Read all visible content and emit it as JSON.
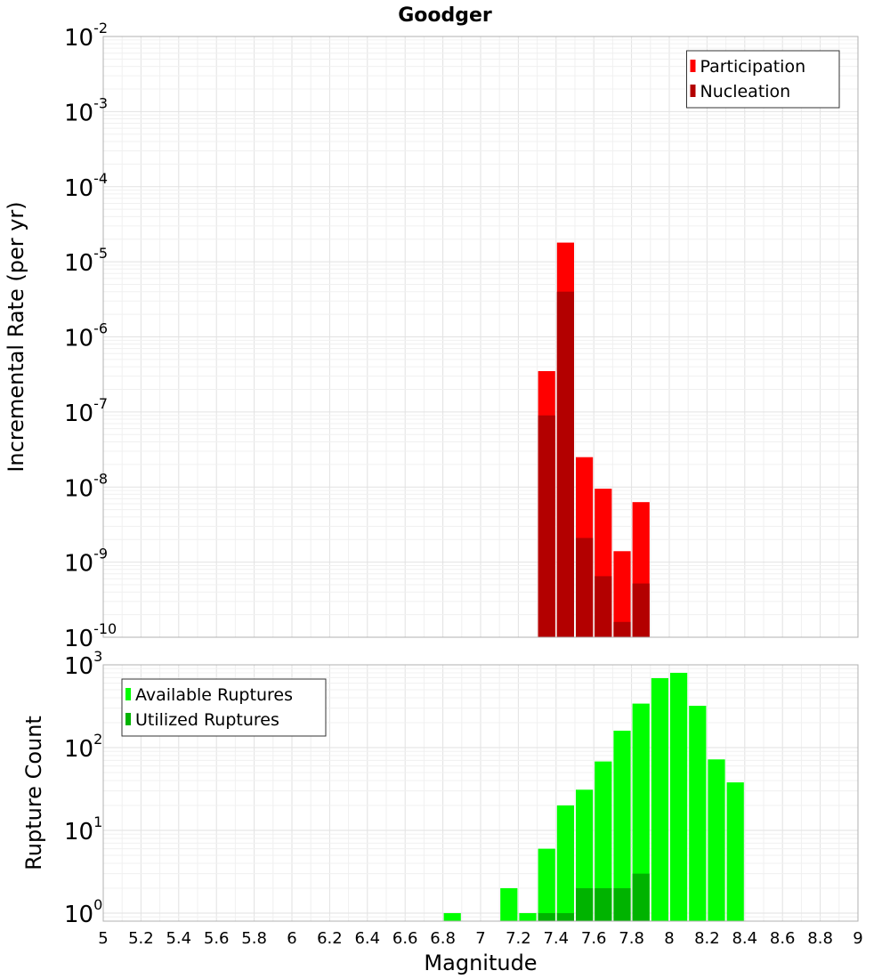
{
  "chart_data": {
    "title": "Goodger",
    "xlabel": "Magnitude",
    "xlim": [
      5,
      9
    ],
    "xticks": [
      "5",
      "5.2",
      "5.4",
      "5.6",
      "5.8",
      "6",
      "6.2",
      "6.4",
      "6.6",
      "6.8",
      "7",
      "7.2",
      "7.4",
      "7.6",
      "7.8",
      "8",
      "8.2",
      "8.4",
      "8.6",
      "8.8",
      "9"
    ],
    "grid": true,
    "panels": [
      {
        "type": "bar",
        "ylabel": "Incremental Rate (per yr)",
        "yscale": "log",
        "ylim": [
          1e-10,
          0.01
        ],
        "ytick_exponents": [
          "-2",
          "-3",
          "-4",
          "-5",
          "-6",
          "-7",
          "-8",
          "-9",
          "-10"
        ],
        "legend_position": "top-right",
        "series": [
          {
            "name": "Participation",
            "color": "#ff0000",
            "points": [
              {
                "x": 7.35,
                "y": 3.5e-07
              },
              {
                "x": 7.45,
                "y": 1.8e-05
              },
              {
                "x": 7.55,
                "y": 2.5e-08
              },
              {
                "x": 7.65,
                "y": 9.5e-09
              },
              {
                "x": 7.75,
                "y": 1.4e-09
              },
              {
                "x": 7.85,
                "y": 6.3e-09
              }
            ]
          },
          {
            "name": "Nucleation",
            "color": "#b30000",
            "points": [
              {
                "x": 7.35,
                "y": 9e-08
              },
              {
                "x": 7.45,
                "y": 4e-06
              },
              {
                "x": 7.55,
                "y": 2.1e-09
              },
              {
                "x": 7.65,
                "y": 6.5e-10
              },
              {
                "x": 7.75,
                "y": 1.6e-10
              },
              {
                "x": 7.85,
                "y": 5.2e-10
              }
            ]
          }
        ]
      },
      {
        "type": "bar",
        "ylabel": "Rupture Count",
        "yscale": "log",
        "ylim": [
          0.8,
          1000
        ],
        "ytick_exponents": [
          "3",
          "2",
          "1",
          "0"
        ],
        "legend_position": "top-left",
        "series": [
          {
            "name": "Available Ruptures",
            "color": "#00ff00",
            "points": [
              {
                "x": 6.85,
                "y": 1
              },
              {
                "x": 7.15,
                "y": 2
              },
              {
                "x": 7.25,
                "y": 1
              },
              {
                "x": 7.35,
                "y": 6
              },
              {
                "x": 7.45,
                "y": 20
              },
              {
                "x": 7.55,
                "y": 31
              },
              {
                "x": 7.65,
                "y": 68
              },
              {
                "x": 7.75,
                "y": 160
              },
              {
                "x": 7.85,
                "y": 340
              },
              {
                "x": 7.95,
                "y": 690
              },
              {
                "x": 8.05,
                "y": 800
              },
              {
                "x": 8.15,
                "y": 320
              },
              {
                "x": 8.25,
                "y": 72
              },
              {
                "x": 8.35,
                "y": 38
              }
            ]
          },
          {
            "name": "Utilized Ruptures",
            "color": "#00b300",
            "points": [
              {
                "x": 7.35,
                "y": 1
              },
              {
                "x": 7.45,
                "y": 1
              },
              {
                "x": 7.55,
                "y": 2
              },
              {
                "x": 7.65,
                "y": 2
              },
              {
                "x": 7.75,
                "y": 2
              },
              {
                "x": 7.85,
                "y": 3
              }
            ]
          }
        ]
      }
    ]
  }
}
